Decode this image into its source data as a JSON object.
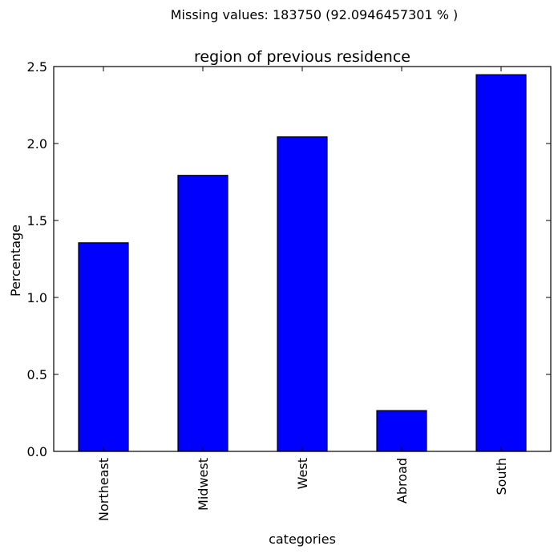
{
  "chart_data": {
    "type": "bar",
    "suptitle": "Missing values: 183750 (92.0946457301 % )",
    "title": "region of previous residence",
    "xlabel": "categories",
    "ylabel": "Percentage",
    "categories": [
      "Northeast",
      "Midwest",
      "West",
      "Abroad",
      "South"
    ],
    "values": [
      1.355,
      1.793,
      2.043,
      0.265,
      2.447
    ],
    "ylim": [
      0,
      2.5
    ],
    "yticks": [
      "0.0",
      "0.5",
      "1.0",
      "1.5",
      "2.0",
      "2.5"
    ],
    "bar_color": "#0000ff",
    "edge_color": "#000000",
    "grid": false,
    "legend": false
  }
}
